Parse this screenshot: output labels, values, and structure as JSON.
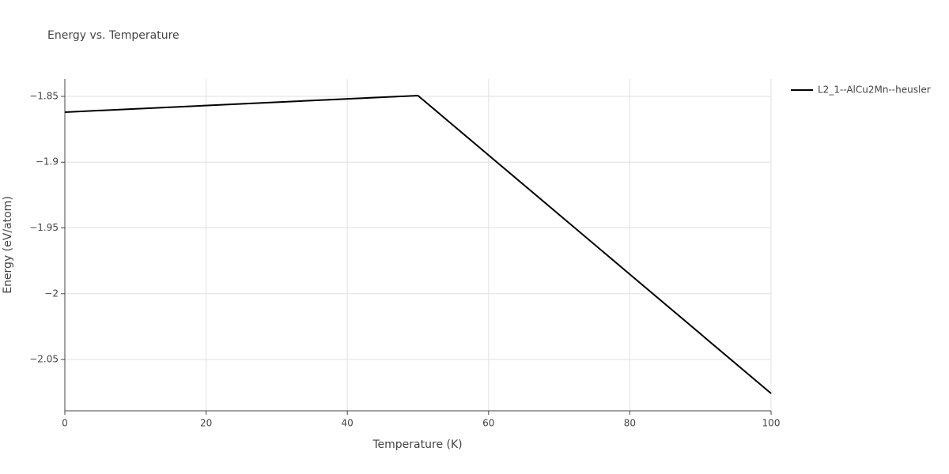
{
  "chart_data": {
    "type": "line",
    "title": "Energy vs. Temperature",
    "x_label": "Temperature (K)",
    "y_label": "Energy (eV/atom)",
    "x": [
      0,
      50,
      100
    ],
    "series": [
      {
        "name": "L2_1--AlCu2Mn--heusler",
        "color": "#000000",
        "values": [
          -1.862,
          -1.8494,
          -2.0758
        ]
      }
    ],
    "xlim": [
      0,
      100
    ],
    "ylim": [
      -2.089,
      -1.8368
    ],
    "xticks": [
      0,
      20,
      40,
      60,
      80,
      100
    ],
    "yticks": [
      {
        "value": -2.05,
        "label": "−2.05"
      },
      {
        "value": -2,
        "label": "−2"
      },
      {
        "value": -1.95,
        "label": "−1.95"
      },
      {
        "value": -1.9,
        "label": "−1.9"
      },
      {
        "value": -1.85,
        "label": "−1.85"
      }
    ],
    "grid": true,
    "legend": "right"
  }
}
